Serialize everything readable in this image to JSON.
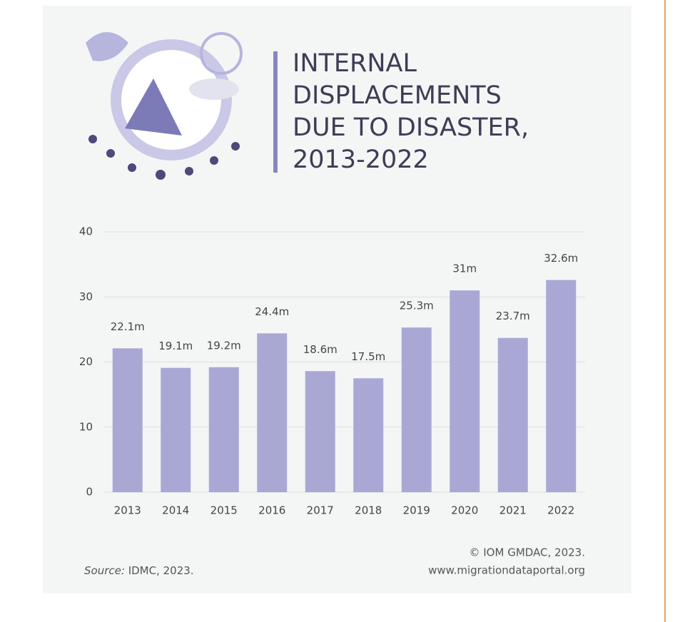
{
  "chart_data": {
    "type": "bar",
    "title": [
      "INTERNAL",
      "DISPLACEMENTS",
      "DUE TO DISASTER,",
      "2013-2022"
    ],
    "categories": [
      "2013",
      "2014",
      "2015",
      "2016",
      "2017",
      "2018",
      "2019",
      "2020",
      "2021",
      "2022"
    ],
    "values": [
      22.1,
      19.1,
      19.2,
      24.4,
      18.6,
      17.5,
      25.3,
      31,
      23.7,
      32.6
    ],
    "value_labels": [
      "22.1m",
      "19.1m",
      "19.2m",
      "24.4m",
      "18.6m",
      "17.5m",
      "25.3m",
      "31m",
      "23.7m",
      "32.6m"
    ],
    "color": "#a9a8d5",
    "ylim": [
      0,
      40
    ],
    "yticks": [
      0,
      10,
      20,
      30,
      40
    ],
    "grid": true,
    "source_label": "Source:",
    "source": "IDMC, 2023.",
    "copyright": "© IOM GMDAC, 2023.",
    "website": "www.migrationdataportal.org"
  }
}
